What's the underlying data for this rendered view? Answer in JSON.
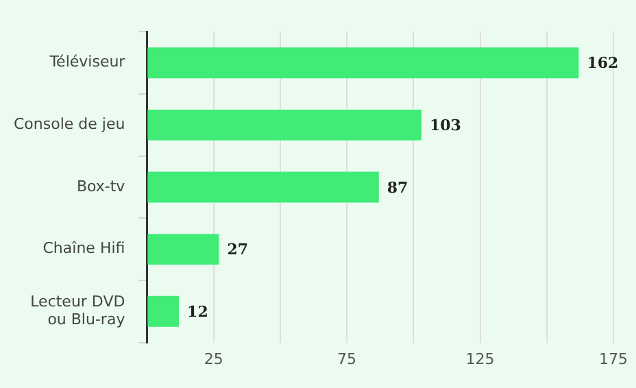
{
  "chart_data": {
    "type": "bar",
    "orientation": "horizontal",
    "categories": [
      "Téléviseur",
      "Console de jeu",
      "Box-tv",
      "Chaîne Hifi",
      "Lecteur DVD ou Blu-ray"
    ],
    "values": [
      162,
      103,
      87,
      27,
      12
    ],
    "color": "#40eb76",
    "xlim": [
      0,
      175
    ],
    "xticks": [
      {
        "value": 0,
        "label": null
      },
      25,
      {
        "value": 50,
        "label": null
      },
      75,
      {
        "value": 100,
        "label": null
      },
      125,
      {
        "value": 150,
        "label": null
      },
      175
    ],
    "grid": "x",
    "data_labels": true
  }
}
